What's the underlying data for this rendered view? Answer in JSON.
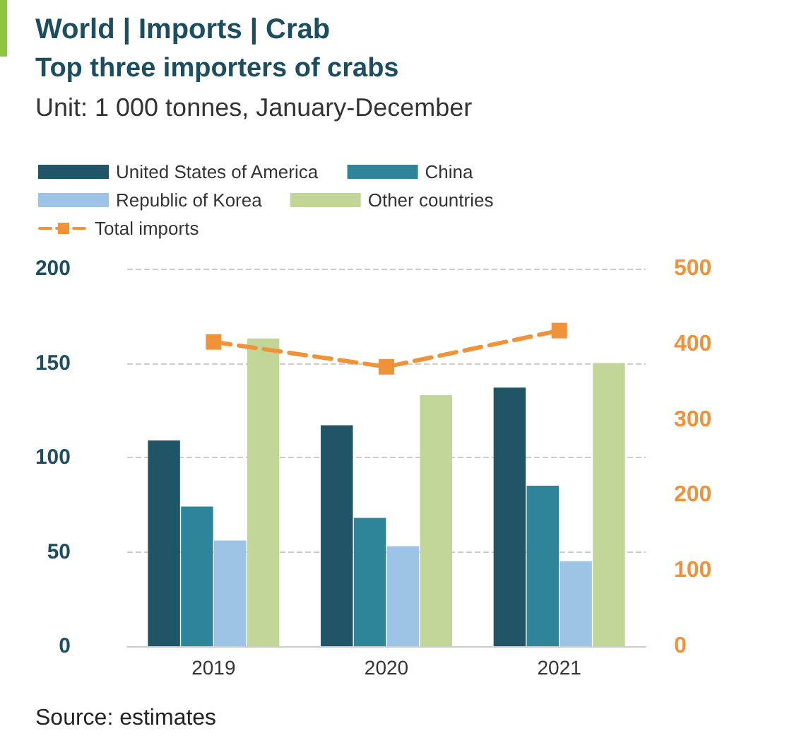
{
  "chart_data": {
    "type": "bar",
    "title": "World | Imports | Crab",
    "subtitle": "Top three importers of crabs",
    "annotations": [
      "Unit: 1 000 tonnes, January-December",
      "Source: estimates"
    ],
    "categories": [
      "2019",
      "2020",
      "2021"
    ],
    "series": [
      {
        "name": "United States of America",
        "color": "#1f5566",
        "values": [
          109,
          117,
          137
        ]
      },
      {
        "name": "China",
        "color": "#2e8499",
        "values": [
          74,
          68,
          85
        ]
      },
      {
        "name": "Republic of Korea",
        "color": "#9dc3e6",
        "values": [
          56,
          53,
          45
        ]
      },
      {
        "name": "Other countries",
        "color": "#c1d597",
        "values": [
          163,
          133,
          150
        ]
      },
      {
        "name": "Total imports",
        "type": "line",
        "axis": "y2",
        "color": "#f0923a",
        "values": [
          403,
          370,
          418
        ],
        "marker": "square",
        "line_style": "dashed"
      }
    ],
    "ylim": [
      0,
      200
    ],
    "yticks": [
      0,
      50,
      100,
      150,
      200
    ],
    "y2lim": [
      0,
      500
    ],
    "y2ticks": [
      0,
      100,
      200,
      300,
      400,
      500
    ],
    "grid": "y",
    "legend": "top"
  }
}
